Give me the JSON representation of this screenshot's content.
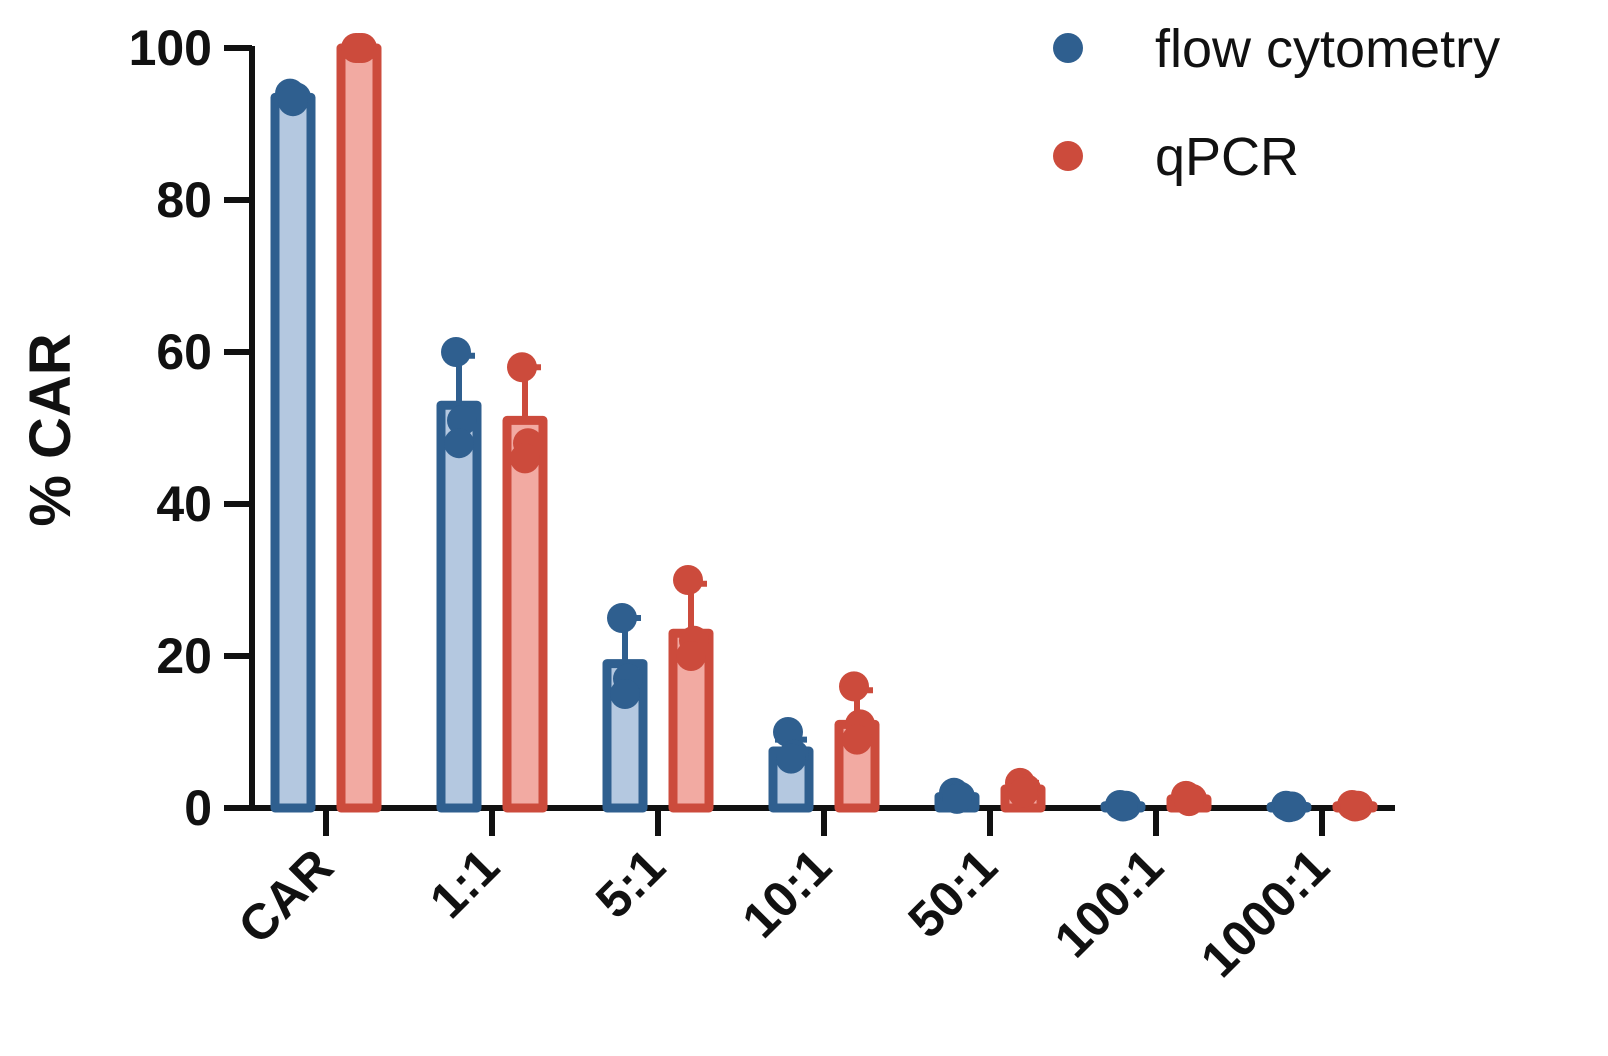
{
  "chart_data": {
    "type": "bar",
    "title": "",
    "xlabel": "",
    "ylabel": "% CAR",
    "ylim": [
      0,
      100
    ],
    "yticks": [
      0,
      20,
      40,
      60,
      80,
      100
    ],
    "grid": false,
    "legend_position": "top-right",
    "categories": [
      "CAR",
      "1:1",
      "5:1",
      "10:1",
      "50:1",
      "100:1",
      "1000:1"
    ],
    "series": [
      {
        "name": "flow cytometry",
        "color": "#2f5f8f",
        "fill": "#b4c8e0",
        "values": [
          93.5,
          53,
          19,
          7.5,
          1.5,
          0.3,
          0.2
        ],
        "error": [
          0.5,
          6.5,
          6,
          1.5,
          0.5,
          0.1,
          0.1
        ],
        "points": [
          [
            94,
            93.5,
            93
          ],
          [
            60,
            51,
            48
          ],
          [
            25,
            17,
            15
          ],
          [
            10,
            7,
            6.5
          ],
          [
            2,
            1.5,
            1.2
          ],
          [
            0.4,
            0.3,
            0.2
          ],
          [
            0.3,
            0.2,
            0.1
          ]
        ]
      },
      {
        "name": "qPCR",
        "color": "#cc4b3c",
        "fill": "#f2aaa2",
        "values": [
          100,
          51,
          23,
          11,
          2.5,
          1.2,
          0.3
        ],
        "error": [
          0,
          7,
          6.5,
          4.5,
          0.8,
          0.5,
          0.1
        ],
        "points": [
          [
            100,
            100,
            100
          ],
          [
            58,
            48,
            46
          ],
          [
            30,
            22,
            20
          ],
          [
            16,
            11,
            9
          ],
          [
            3.3,
            2.5,
            2
          ],
          [
            1.6,
            1.2,
            0.9
          ],
          [
            0.4,
            0.3,
            0.2
          ]
        ]
      }
    ]
  }
}
